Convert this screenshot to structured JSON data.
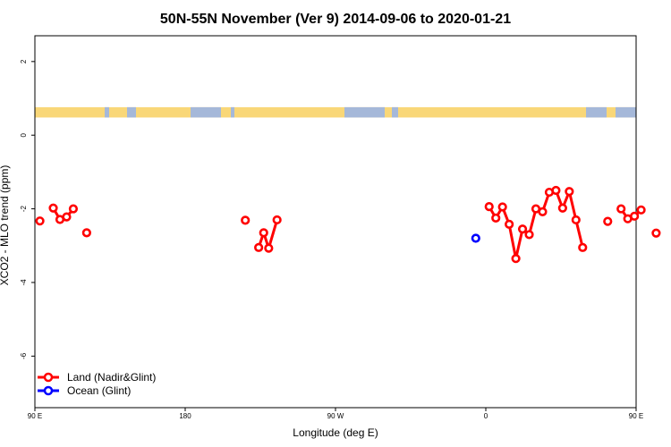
{
  "chart_data": {
    "type": "line",
    "title": "50N-55N November (Ver 9)   2014-09-06 to 2020-01-21",
    "xlabel": "Longitude (deg E)",
    "ylabel": "XCO2 - MLO trend (ppm)",
    "xlim": [
      90,
      450
    ],
    "ylim": [
      -7.4,
      2.7
    ],
    "x_ticks": [
      {
        "value": 90,
        "label": "90 E"
      },
      {
        "value": 180,
        "label": "180"
      },
      {
        "value": 270,
        "label": "90 W"
      },
      {
        "value": 360,
        "label": "0"
      },
      {
        "value": 450,
        "label": "90 E"
      },
      {
        "value": 540,
        "label": "180"
      }
    ],
    "y_ticks": [
      {
        "value": 2,
        "label": "2"
      },
      {
        "value": 0,
        "label": "0"
      },
      {
        "value": -2,
        "label": "-2"
      },
      {
        "value": -4,
        "label": "-4"
      },
      {
        "value": -6,
        "label": "-6"
      }
    ],
    "land_mask": {
      "y_range": [
        0.48,
        0.76
      ],
      "land_color": "#F9D778",
      "ocean_color": "#A5B8D9"
    },
    "series": [
      {
        "name": "Land (Nadir&Glint)",
        "color": "#FF0000",
        "segments": [
          [
            [
              93,
              -2.33
            ]
          ],
          [
            [
              101,
              -1.98
            ],
            [
              105,
              -2.29
            ],
            [
              109,
              -2.22
            ],
            [
              113,
              -2.0
            ]
          ],
          [
            [
              121,
              -2.65
            ]
          ],
          [
            [
              216,
              -2.31
            ]
          ],
          [
            [
              224,
              -3.05
            ],
            [
              227,
              -2.65
            ],
            [
              230,
              -3.07
            ],
            [
              235,
              -2.3
            ]
          ],
          [
            [
              362,
              -1.94
            ],
            [
              366,
              -2.25
            ],
            [
              370,
              -1.95
            ],
            [
              374,
              -2.42
            ],
            [
              378,
              -3.35
            ],
            [
              382,
              -2.55
            ],
            [
              386,
              -2.7
            ],
            [
              390,
              -2.0
            ],
            [
              394,
              -2.08
            ],
            [
              398,
              -1.55
            ],
            [
              402,
              -1.5
            ],
            [
              406,
              -1.98
            ],
            [
              410,
              -1.53
            ],
            [
              414,
              -2.3
            ],
            [
              418,
              -3.05
            ]
          ],
          [
            [
              433,
              -2.34
            ]
          ],
          [
            [
              441,
              -2.0
            ],
            [
              445,
              -2.27
            ],
            [
              449,
              -2.2
            ],
            [
              453,
              -2.03
            ]
          ],
          [
            [
              462,
              -2.66
            ]
          ]
        ]
      },
      {
        "name": "Ocean (Glint)",
        "color": "#0000FF",
        "segments": [
          [
            [
              354,
              -2.8
            ]
          ]
        ]
      }
    ],
    "legend_position": "bottom-left"
  }
}
